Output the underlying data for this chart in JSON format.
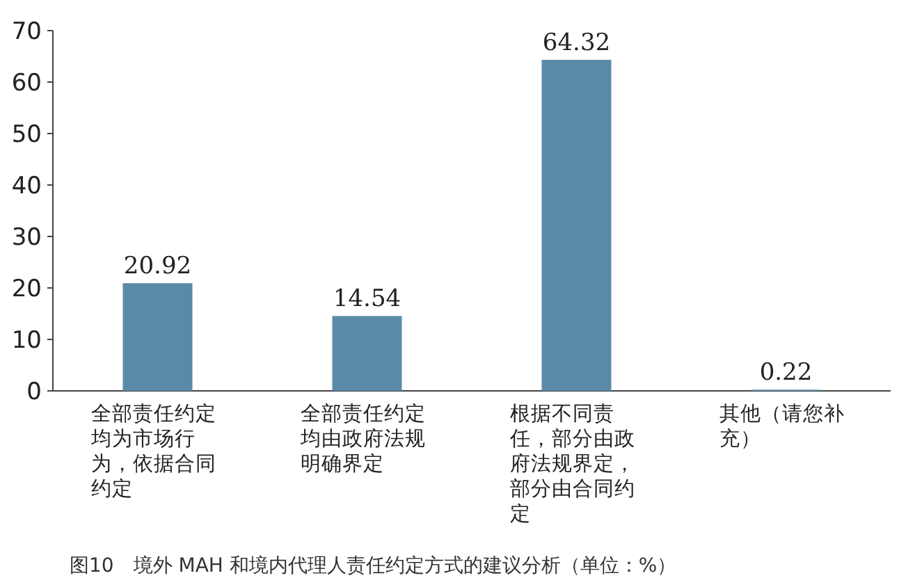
{
  "chart_data": {
    "type": "bar",
    "title": "图10　境外 MAH 和境内代理人责任约定方式的建议分析（单位：%）",
    "categories": [
      "全部责任约定均为市场行为，依据合同约定",
      "全部责任约定均由政府法规明确界定",
      "根据不同责任，部分由政府法规界定，部分由合同约定",
      "其他（请您补充）"
    ],
    "values": [
      20.92,
      14.54,
      64.32,
      0.22
    ],
    "color": "#5b8aa8",
    "ylim": [
      0,
      70
    ],
    "yticks": [
      0,
      10,
      20,
      30,
      40,
      50,
      60,
      70
    ],
    "data_labels": true
  }
}
